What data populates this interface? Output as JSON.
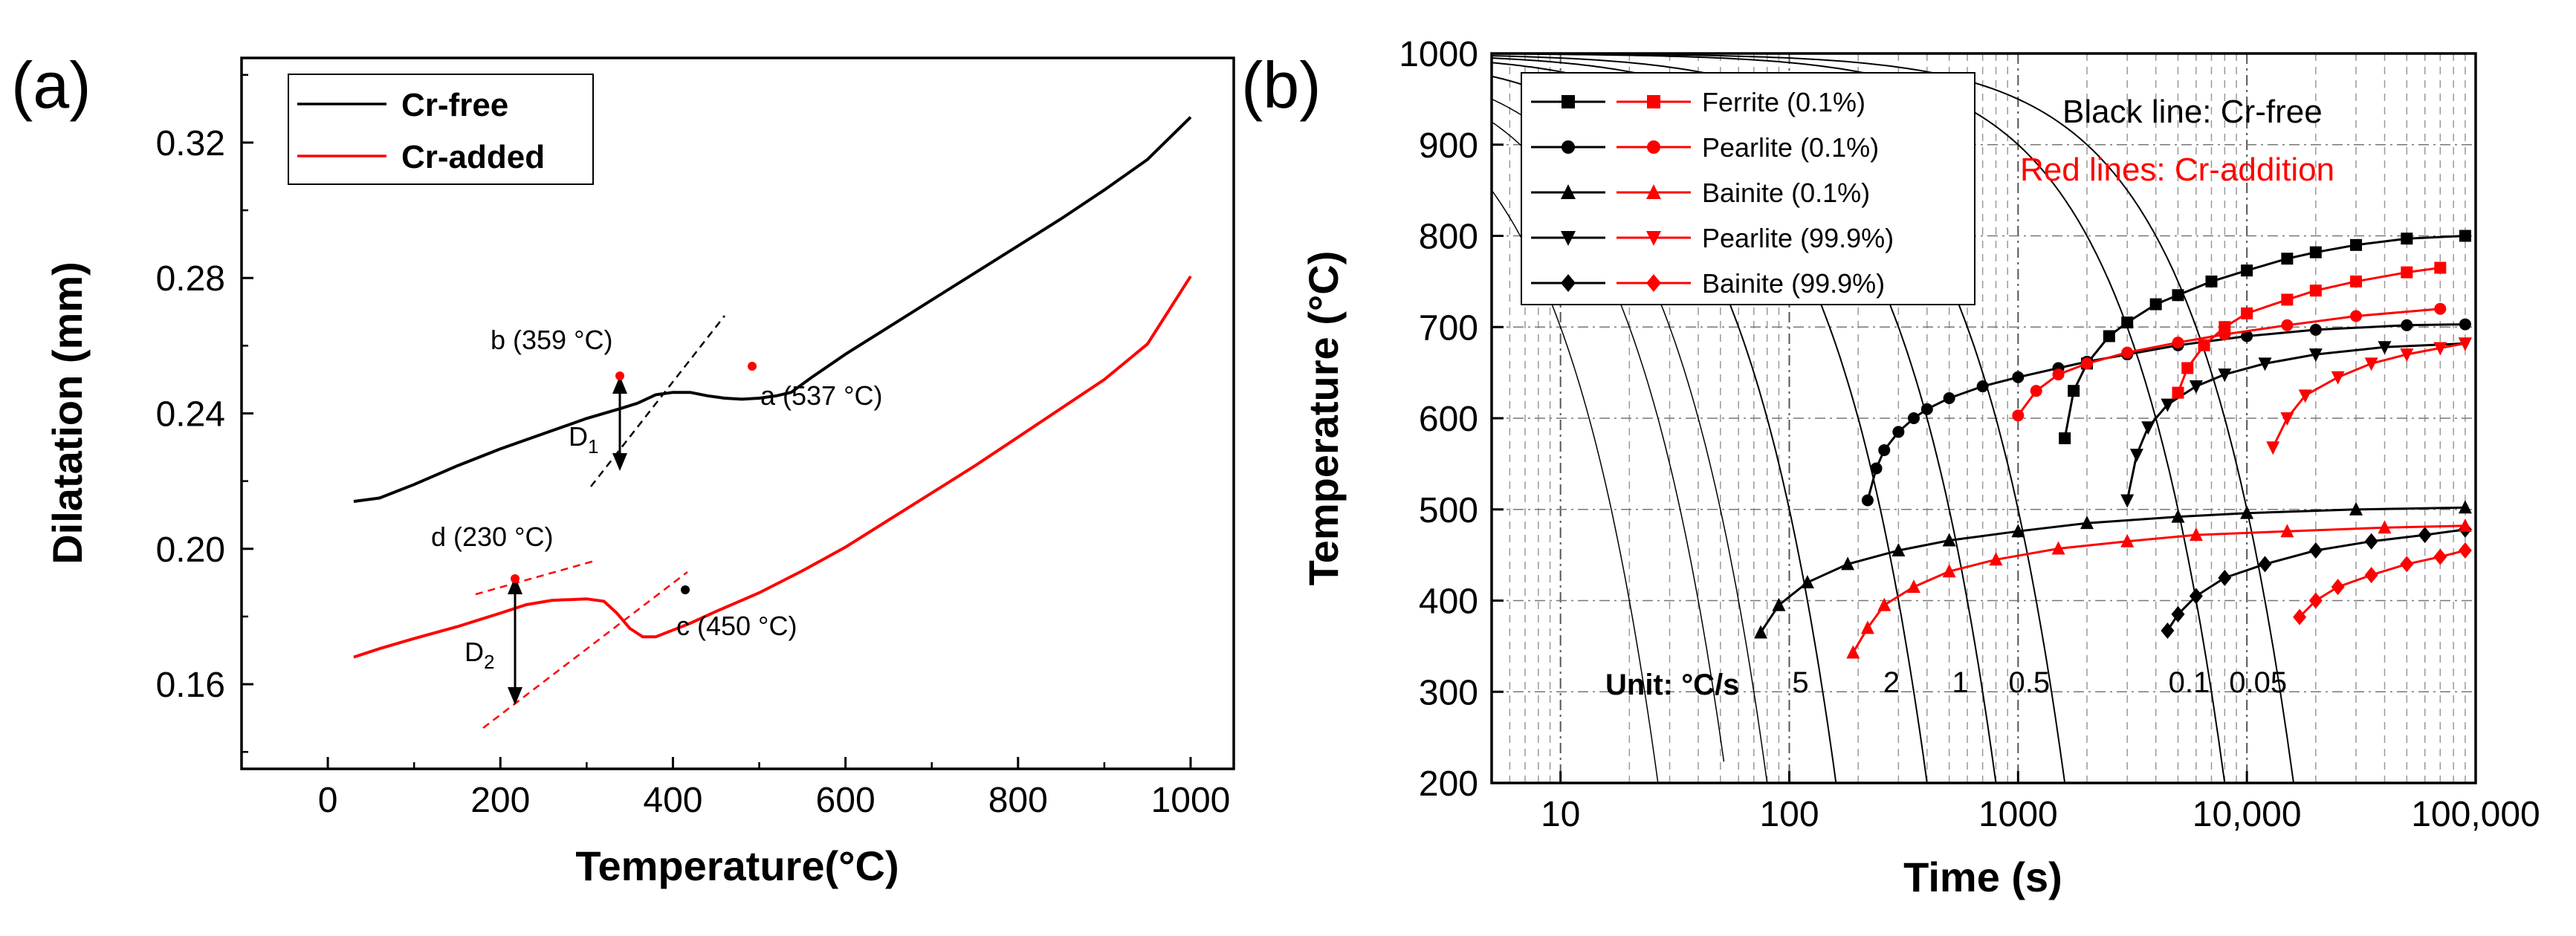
{
  "figure": {
    "panel_a_label": "(a)",
    "panel_b_label": "(b)"
  },
  "colors": {
    "cr_free": "#000000",
    "cr_added": "#ff0000"
  },
  "chart_data": [
    {
      "id": "a",
      "type": "line",
      "xlabel": "Temperature(°C)",
      "ylabel": "Dilatation (mm)",
      "xlim": [
        -100,
        1050
      ],
      "ylim": [
        0.135,
        0.345
      ],
      "xticks": [
        0,
        200,
        400,
        600,
        800,
        1000
      ],
      "xtick_labels": [
        "0",
        "200",
        "400",
        "600",
        "800",
        "1000"
      ],
      "yticks": [
        0.16,
        0.2,
        0.24,
        0.28,
        0.32
      ],
      "ytick_labels": [
        "0.16",
        "0.20",
        "0.24",
        "0.28",
        "0.32"
      ],
      "legend": [
        {
          "label": "Cr-free",
          "color": "#000000"
        },
        {
          "label": "Cr-added",
          "color": "#ff0000"
        }
      ],
      "series": [
        {
          "name": "Cr-free",
          "color": "#000000",
          "x": [
            30,
            60,
            100,
            150,
            200,
            250,
            300,
            340,
            359,
            380,
            400,
            420,
            440,
            460,
            480,
            500,
            520,
            537,
            560,
            600,
            650,
            700,
            750,
            800,
            850,
            900,
            950,
            1000
          ],
          "y": [
            0.214,
            0.215,
            0.219,
            0.2245,
            0.2295,
            0.234,
            0.2385,
            0.2415,
            0.243,
            0.2455,
            0.2462,
            0.2462,
            0.2452,
            0.2445,
            0.2442,
            0.2445,
            0.2452,
            0.2462,
            0.2505,
            0.2575,
            0.2655,
            0.2735,
            0.2815,
            0.2895,
            0.2975,
            0.306,
            0.315,
            0.3275
          ]
        },
        {
          "name": "Cr-added",
          "color": "#ff0000",
          "x": [
            30,
            60,
            100,
            150,
            200,
            230,
            260,
            300,
            320,
            335,
            350,
            365,
            380,
            400,
            420,
            450,
            500,
            550,
            600,
            650,
            700,
            750,
            800,
            850,
            900,
            950,
            1000
          ],
          "y": [
            0.168,
            0.1705,
            0.1735,
            0.177,
            0.181,
            0.1835,
            0.1848,
            0.1852,
            0.1845,
            0.181,
            0.1765,
            0.174,
            0.174,
            0.176,
            0.178,
            0.1815,
            0.187,
            0.1935,
            0.2005,
            0.2085,
            0.2165,
            0.2245,
            0.233,
            0.2415,
            0.25,
            0.2605,
            0.2805
          ]
        }
      ],
      "annotations": {
        "b": {
          "text": "b (359 °C)",
          "x": 359,
          "y": 0.243
        },
        "a": {
          "text": "a (537 °C)",
          "x": 537,
          "y": 0.2462
        },
        "d": {
          "text": "d (230 °C)",
          "x": 230,
          "y": 0.1845
        },
        "c": {
          "text": "c (450 °C)",
          "x": 450,
          "y": 0.1815
        },
        "D1": {
          "text": "D",
          "sub": "1"
        },
        "D2": {
          "text": "D",
          "sub": "2"
        }
      }
    },
    {
      "id": "b",
      "type": "line",
      "x_scale": "log",
      "xlabel": "Time (s)",
      "ylabel": "Temperature (°C)",
      "xlim": [
        5,
        100000
      ],
      "ylim": [
        200,
        1000
      ],
      "xticks": [
        10,
        100,
        1000,
        10000,
        100000
      ],
      "xtick_labels": [
        "10",
        "100",
        "1000",
        "10,000",
        "100,000"
      ],
      "yticks": [
        200,
        300,
        400,
        500,
        600,
        700,
        800,
        900,
        1000
      ],
      "ytick_labels": [
        "200",
        "300",
        "400",
        "500",
        "600",
        "700",
        "800",
        "900",
        "1000"
      ],
      "legend": [
        {
          "label": "Ferrite (0.1%)",
          "marker": "square"
        },
        {
          "label": "Pearlite (0.1%)",
          "marker": "circle"
        },
        {
          "label": "Bainite (0.1%)",
          "marker": "triangle-up"
        },
        {
          "label": "Pearlite (99.9%)",
          "marker": "triangle-down"
        },
        {
          "label": "Bainite (99.9%)",
          "marker": "diamond"
        }
      ],
      "notes": {
        "black": "Black line: Cr-free",
        "red": "Red lines: Cr-addition",
        "unit": "Unit: °C/s"
      },
      "cooling_rates": [
        {
          "label": "5",
          "rate": 5
        },
        {
          "label": "2",
          "rate": 2
        },
        {
          "label": "1",
          "rate": 1
        },
        {
          "label": "0.5",
          "rate": 0.5
        },
        {
          "label": "0.1",
          "rate": 0.1
        },
        {
          "label": "0.05",
          "rate": 0.05
        }
      ],
      "series": [
        {
          "name": "Ferrite (0.1%) Cr-free",
          "color": "#000000",
          "marker": "square",
          "x": [
            1600,
            1750,
            2000,
            2500,
            3000,
            4000,
            5000,
            7000,
            10000,
            15000,
            20000,
            30000,
            50000,
            90000
          ],
          "y": [
            578,
            630,
            660,
            690,
            705,
            725,
            735,
            750,
            762,
            775,
            782,
            790,
            797,
            800
          ]
        },
        {
          "name": "Pearlite (0.1%) Cr-free",
          "color": "#000000",
          "marker": "circle",
          "x": [
            220,
            240,
            260,
            300,
            350,
            400,
            500,
            700,
            1000,
            1500,
            2000,
            3000,
            5000,
            10000,
            20000,
            50000,
            90000
          ],
          "y": [
            510,
            545,
            565,
            585,
            600,
            610,
            622,
            635,
            645,
            655,
            662,
            670,
            680,
            690,
            697,
            702,
            703
          ]
        },
        {
          "name": "Bainite (0.1%) Cr-free",
          "color": "#000000",
          "marker": "triangle-up",
          "x": [
            75,
            90,
            120,
            180,
            300,
            500,
            1000,
            2000,
            5000,
            10000,
            30000,
            90000
          ],
          "y": [
            365,
            395,
            420,
            440,
            455,
            466,
            476,
            485,
            492,
            496,
            500,
            502
          ]
        },
        {
          "name": "Pearlite (99.9%) Cr-free",
          "color": "#000000",
          "marker": "triangle-down",
          "x": [
            3000,
            3300,
            3700,
            4500,
            6000,
            8000,
            12000,
            20000,
            40000,
            90000
          ],
          "y": [
            510,
            560,
            590,
            615,
            635,
            648,
            660,
            670,
            678,
            682
          ]
        },
        {
          "name": "Bainite (99.9%) Cr-free",
          "color": "#000000",
          "marker": "diamond",
          "x": [
            4500,
            5000,
            6000,
            8000,
            12000,
            20000,
            35000,
            60000,
            90000
          ],
          "y": [
            367,
            385,
            405,
            425,
            440,
            455,
            465,
            472,
            478
          ]
        },
        {
          "name": "Ferrite (0.1%) Cr-addition",
          "color": "#ff0000",
          "marker": "square",
          "x": [
            5000,
            5500,
            6500,
            8000,
            10000,
            15000,
            20000,
            30000,
            50000,
            70000
          ],
          "y": [
            628,
            655,
            680,
            700,
            715,
            730,
            740,
            750,
            760,
            765
          ]
        },
        {
          "name": "Pearlite (0.1%) Cr-addition",
          "color": "#ff0000",
          "marker": "circle",
          "x": [
            1000,
            1200,
            1500,
            2000,
            3000,
            5000,
            8000,
            15000,
            30000,
            70000
          ],
          "y": [
            603,
            630,
            648,
            660,
            672,
            683,
            692,
            702,
            712,
            720
          ]
        },
        {
          "name": "Bainite (0.1%) Cr-addition",
          "color": "#ff0000",
          "marker": "triangle-up",
          "x": [
            190,
            220,
            260,
            350,
            500,
            800,
            1500,
            3000,
            6000,
            15000,
            40000,
            90000
          ],
          "y": [
            343,
            370,
            395,
            415,
            432,
            445,
            457,
            465,
            472,
            476,
            480,
            482
          ]
        },
        {
          "name": "Pearlite (99.9%) Cr-addition",
          "color": "#ff0000",
          "marker": "triangle-down",
          "x": [
            13000,
            15000,
            18000,
            25000,
            35000,
            50000,
            70000,
            90000
          ],
          "y": [
            568,
            600,
            625,
            645,
            660,
            670,
            677,
            682
          ]
        },
        {
          "name": "Bainite (99.9%) Cr-addition",
          "color": "#ff0000",
          "marker": "diamond",
          "x": [
            17000,
            20000,
            25000,
            35000,
            50000,
            70000,
            90000
          ],
          "y": [
            382,
            400,
            415,
            428,
            440,
            448,
            455
          ]
        }
      ]
    }
  ]
}
